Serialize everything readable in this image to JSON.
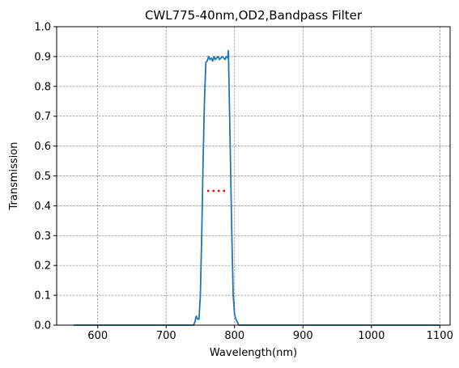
{
  "chart_data": {
    "type": "line",
    "title": "CWL775-40nm,OD2,Bandpass Filter",
    "xlabel": "Wavelength(nm)",
    "ylabel": "Transmission",
    "xlim": [
      540,
      1115
    ],
    "ylim": [
      0,
      1.0
    ],
    "xticks": [
      600,
      700,
      800,
      900,
      1000,
      1100
    ],
    "xtick_labels": [
      "600",
      "700",
      "800",
      "900",
      "1000",
      "1100"
    ],
    "yticks": [
      0,
      0.1,
      0.2,
      0.3,
      0.4,
      0.5,
      0.6,
      0.7,
      0.8,
      0.9,
      1.0
    ],
    "ytick_labels": [
      "0.0",
      "0.1",
      "0.2",
      "0.3",
      "0.4",
      "0.5",
      "0.6",
      "0.7",
      "0.8",
      "0.9",
      "1.0"
    ],
    "grid": true,
    "series": [
      {
        "color": "#1f77b4",
        "style": "solid",
        "x": [
          565,
          700,
          740,
          742,
          744,
          746,
          748,
          750,
          752,
          754,
          756,
          758,
          760,
          762,
          764,
          766,
          768,
          770,
          772,
          774,
          776,
          778,
          780,
          782,
          784,
          786,
          788,
          790,
          791,
          792,
          794,
          796,
          798,
          800,
          802,
          804,
          806,
          808,
          900,
          1000,
          1100
        ],
        "y": [
          0.0,
          0.0,
          0.0,
          0.01,
          0.03,
          0.02,
          0.02,
          0.1,
          0.3,
          0.55,
          0.75,
          0.88,
          0.885,
          0.9,
          0.89,
          0.895,
          0.885,
          0.9,
          0.89,
          0.895,
          0.9,
          0.89,
          0.895,
          0.9,
          0.895,
          0.89,
          0.9,
          0.895,
          0.92,
          0.8,
          0.55,
          0.3,
          0.1,
          0.035,
          0.02,
          0.01,
          0.0,
          0.0,
          0.0,
          0.0,
          0.0
        ]
      },
      {
        "color": "#ff0000",
        "style": "dotted",
        "x": [
          760,
          790
        ],
        "y": [
          0.45,
          0.45
        ]
      }
    ]
  }
}
